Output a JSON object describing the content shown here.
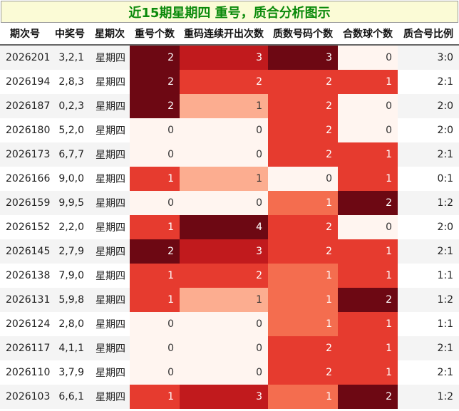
{
  "title": "近15期星期四 重号，质合分析图示",
  "headers": [
    "期次号",
    "中奖号",
    "星期次",
    "重号个数",
    "重码连续开出次数",
    "质数号码个数",
    "合数球个数",
    "质合号比例"
  ],
  "rows": [
    {
      "period": "2026201",
      "numbers": "3,2,1",
      "weekday": "星期四",
      "repeat": "2",
      "repeat_streak": "3",
      "prime": "3",
      "composite": "0",
      "ratio": "3:0"
    },
    {
      "period": "2026194",
      "numbers": "2,8,3",
      "weekday": "星期四",
      "repeat": "2",
      "repeat_streak": "2",
      "prime": "2",
      "composite": "1",
      "ratio": "2:1"
    },
    {
      "period": "2026187",
      "numbers": "0,2,3",
      "weekday": "星期四",
      "repeat": "2",
      "repeat_streak": "1",
      "prime": "2",
      "composite": "0",
      "ratio": "2:0"
    },
    {
      "period": "2026180",
      "numbers": "5,2,0",
      "weekday": "星期四",
      "repeat": "0",
      "repeat_streak": "0",
      "prime": "2",
      "composite": "0",
      "ratio": "2:0"
    },
    {
      "period": "2026173",
      "numbers": "6,7,7",
      "weekday": "星期四",
      "repeat": "0",
      "repeat_streak": "0",
      "prime": "2",
      "composite": "1",
      "ratio": "2:1"
    },
    {
      "period": "2026166",
      "numbers": "9,0,0",
      "weekday": "星期四",
      "repeat": "1",
      "repeat_streak": "1",
      "prime": "0",
      "composite": "1",
      "ratio": "0:1"
    },
    {
      "period": "2026159",
      "numbers": "9,9,5",
      "weekday": "星期四",
      "repeat": "0",
      "repeat_streak": "0",
      "prime": "1",
      "composite": "2",
      "ratio": "1:2"
    },
    {
      "period": "2026152",
      "numbers": "2,2,0",
      "weekday": "星期四",
      "repeat": "1",
      "repeat_streak": "4",
      "prime": "2",
      "composite": "0",
      "ratio": "2:0"
    },
    {
      "period": "2026145",
      "numbers": "2,7,9",
      "weekday": "星期四",
      "repeat": "2",
      "repeat_streak": "3",
      "prime": "2",
      "composite": "1",
      "ratio": "2:1"
    },
    {
      "period": "2026138",
      "numbers": "7,9,0",
      "weekday": "星期四",
      "repeat": "1",
      "repeat_streak": "2",
      "prime": "1",
      "composite": "1",
      "ratio": "1:1"
    },
    {
      "period": "2026131",
      "numbers": "5,9,8",
      "weekday": "星期四",
      "repeat": "1",
      "repeat_streak": "1",
      "prime": "1",
      "composite": "2",
      "ratio": "1:2"
    },
    {
      "period": "2026124",
      "numbers": "2,8,0",
      "weekday": "星期四",
      "repeat": "0",
      "repeat_streak": "0",
      "prime": "1",
      "composite": "1",
      "ratio": "1:1"
    },
    {
      "period": "2026117",
      "numbers": "4,1,1",
      "weekday": "星期四",
      "repeat": "0",
      "repeat_streak": "0",
      "prime": "2",
      "composite": "1",
      "ratio": "2:1"
    },
    {
      "period": "2026110",
      "numbers": "3,7,9",
      "weekday": "星期四",
      "repeat": "0",
      "repeat_streak": "0",
      "prime": "2",
      "composite": "1",
      "ratio": "2:1"
    },
    {
      "period": "2026103",
      "numbers": "6,6,1",
      "weekday": "星期四",
      "repeat": "1",
      "repeat_streak": "3",
      "prime": "1",
      "composite": "2",
      "ratio": "1:2"
    }
  ],
  "heat_colors": {
    "level0": "#fff5f0",
    "level1": "#fcad90",
    "level2": "#f46d4f",
    "level3": "#e63b2f",
    "level4": "#c11a1d",
    "level5": "#6d0813"
  },
  "title_color": "#0b8a0b"
}
